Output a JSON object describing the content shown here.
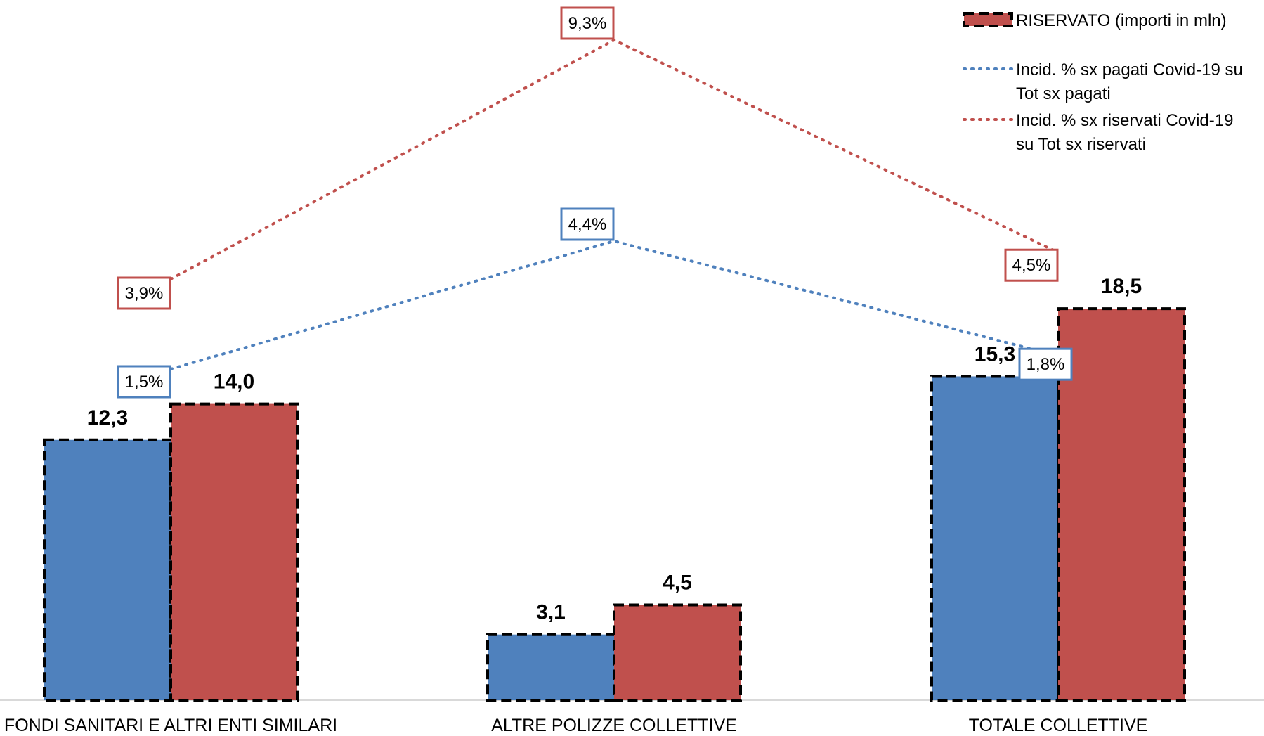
{
  "chart_data": {
    "type": "bar",
    "categories": [
      "FONDI SANITARI E ALTRI ENTI SIMILARI",
      "ALTRE POLIZZE COLLETTIVE",
      "TOTALE COLLETTIVE"
    ],
    "ylim": [
      0,
      21.5
    ],
    "series": [
      {
        "type": "bar",
        "values": [
          12.3,
          3.1,
          15.3
        ],
        "labels": [
          "12,3",
          "3,1",
          "15,3"
        ],
        "color": "#4f81bd"
      },
      {
        "type": "bar",
        "name": "RISERVATO (importi in mln)",
        "values": [
          14.0,
          4.5,
          18.5
        ],
        "labels": [
          "14,0",
          "4,5",
          "18,5"
        ],
        "color": "#c0504d"
      },
      {
        "type": "line",
        "style": "dotted",
        "name_lines": [
          "Incid. % sx pagati Covid-19 su",
          "Tot sx pagati"
        ],
        "values": [
          1.5,
          4.4,
          1.8
        ],
        "labels": [
          "1,5%",
          "4,4%",
          "1,8%"
        ],
        "color": "#4f81bd"
      },
      {
        "type": "line",
        "style": "dotted",
        "name_lines": [
          "Incid. % sx riservati Covid-19",
          "su Tot sx riservati"
        ],
        "values": [
          3.9,
          9.3,
          4.5
        ],
        "labels": [
          "3,9%",
          "9,3%",
          "4,5%"
        ],
        "color": "#c0504d"
      }
    ],
    "legend_position": "top-right",
    "grid": false
  }
}
